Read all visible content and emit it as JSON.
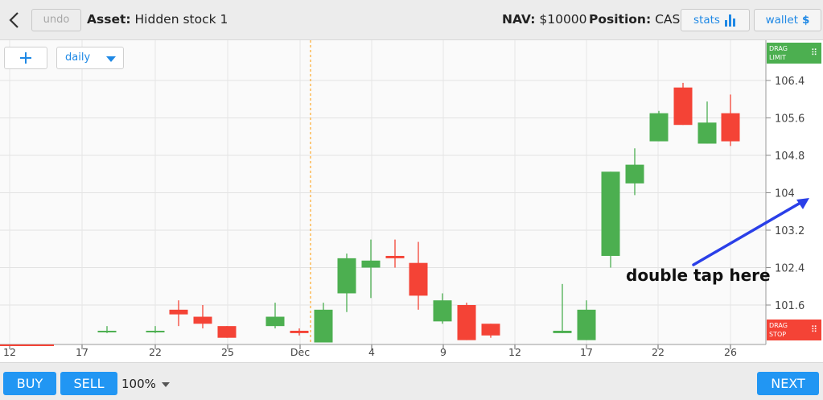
{
  "header": {
    "undo_label": "undo",
    "asset_label": "Asset:",
    "asset_name": "Hidden stock 1",
    "nav_label": "NAV:",
    "nav_value": "$10000",
    "position_label": "Position:",
    "position_value": "CASH",
    "stats_label": "stats",
    "wallet_label": "wallet",
    "wallet_symbol": "$"
  },
  "controls": {
    "period": "daily"
  },
  "drag": {
    "limit_line1": "DRAG",
    "limit_line2": "LIMIT",
    "stop_line1": "DRAG",
    "stop_line2": "STOP",
    "grip": "⠿"
  },
  "annotation": "double tap here",
  "bottom": {
    "buy_label": "BUY",
    "sell_label": "SELL",
    "size_value": "100%",
    "next_label": "NEXT"
  },
  "colors": {
    "up": "#4caf50",
    "down": "#f44336",
    "accent": "#2196f3",
    "marker": "#ff9800"
  },
  "chart_data": {
    "type": "candlestick",
    "y_ticks": [
      "106.4",
      "105.6",
      "104.8",
      "104",
      "103.2",
      "102.4",
      "101.6"
    ],
    "ylim": [
      101.0,
      106.8
    ],
    "x_ticks": [
      "12",
      "17",
      "22",
      "25",
      "Dec",
      "4",
      "9",
      "12",
      "17",
      "22",
      "26"
    ],
    "grid": true,
    "candles": [
      {
        "open": 101.05,
        "high": 101.15,
        "low": 101.0,
        "close": 101.05,
        "dir": "up"
      },
      {
        "open": 101.05,
        "high": 101.15,
        "low": 101.0,
        "close": 101.05,
        "dir": "up"
      },
      {
        "open": 101.5,
        "high": 101.7,
        "low": 101.15,
        "close": 101.4,
        "dir": "down"
      },
      {
        "open": 101.35,
        "high": 101.6,
        "low": 101.1,
        "close": 101.2,
        "dir": "down"
      },
      {
        "open": 101.15,
        "high": 101.15,
        "low": 100.9,
        "close": 100.9,
        "dir": "down"
      },
      {
        "open": 101.15,
        "high": 101.65,
        "low": 101.1,
        "close": 101.35,
        "dir": "up"
      },
      {
        "open": 101.05,
        "high": 101.1,
        "low": 100.95,
        "close": 101.0,
        "dir": "down"
      },
      {
        "open": 100.8,
        "high": 101.65,
        "low": 100.8,
        "close": 101.5,
        "dir": "up"
      },
      {
        "open": 101.85,
        "high": 102.7,
        "low": 101.45,
        "close": 102.6,
        "dir": "up"
      },
      {
        "open": 102.4,
        "high": 103.0,
        "low": 101.75,
        "close": 102.55,
        "dir": "up"
      },
      {
        "open": 102.65,
        "high": 103.0,
        "low": 102.4,
        "close": 102.6,
        "dir": "down"
      },
      {
        "open": 102.5,
        "high": 102.95,
        "low": 101.5,
        "close": 101.8,
        "dir": "down"
      },
      {
        "open": 101.25,
        "high": 101.85,
        "low": 101.2,
        "close": 101.7,
        "dir": "up"
      },
      {
        "open": 101.6,
        "high": 101.65,
        "low": 100.85,
        "close": 100.85,
        "dir": "down"
      },
      {
        "open": 101.2,
        "high": 101.2,
        "low": 100.9,
        "close": 100.95,
        "dir": "down"
      },
      {
        "open": 101.0,
        "high": 102.05,
        "low": 101.0,
        "close": 101.05,
        "dir": "up"
      },
      {
        "open": 100.85,
        "high": 101.7,
        "low": 100.85,
        "close": 101.5,
        "dir": "up"
      },
      {
        "open": 102.65,
        "high": 104.45,
        "low": 102.4,
        "close": 104.45,
        "dir": "up"
      },
      {
        "open": 104.2,
        "high": 104.95,
        "low": 103.95,
        "close": 104.6,
        "dir": "up"
      },
      {
        "open": 105.1,
        "high": 105.75,
        "low": 105.1,
        "close": 105.7,
        "dir": "up"
      },
      {
        "open": 106.25,
        "high": 106.35,
        "low": 105.45,
        "close": 105.45,
        "dir": "down"
      },
      {
        "open": 105.05,
        "high": 105.95,
        "low": 105.05,
        "close": 105.5,
        "dir": "up"
      },
      {
        "open": 105.7,
        "high": 106.1,
        "low": 105.0,
        "close": 105.1,
        "dir": "down"
      }
    ]
  }
}
